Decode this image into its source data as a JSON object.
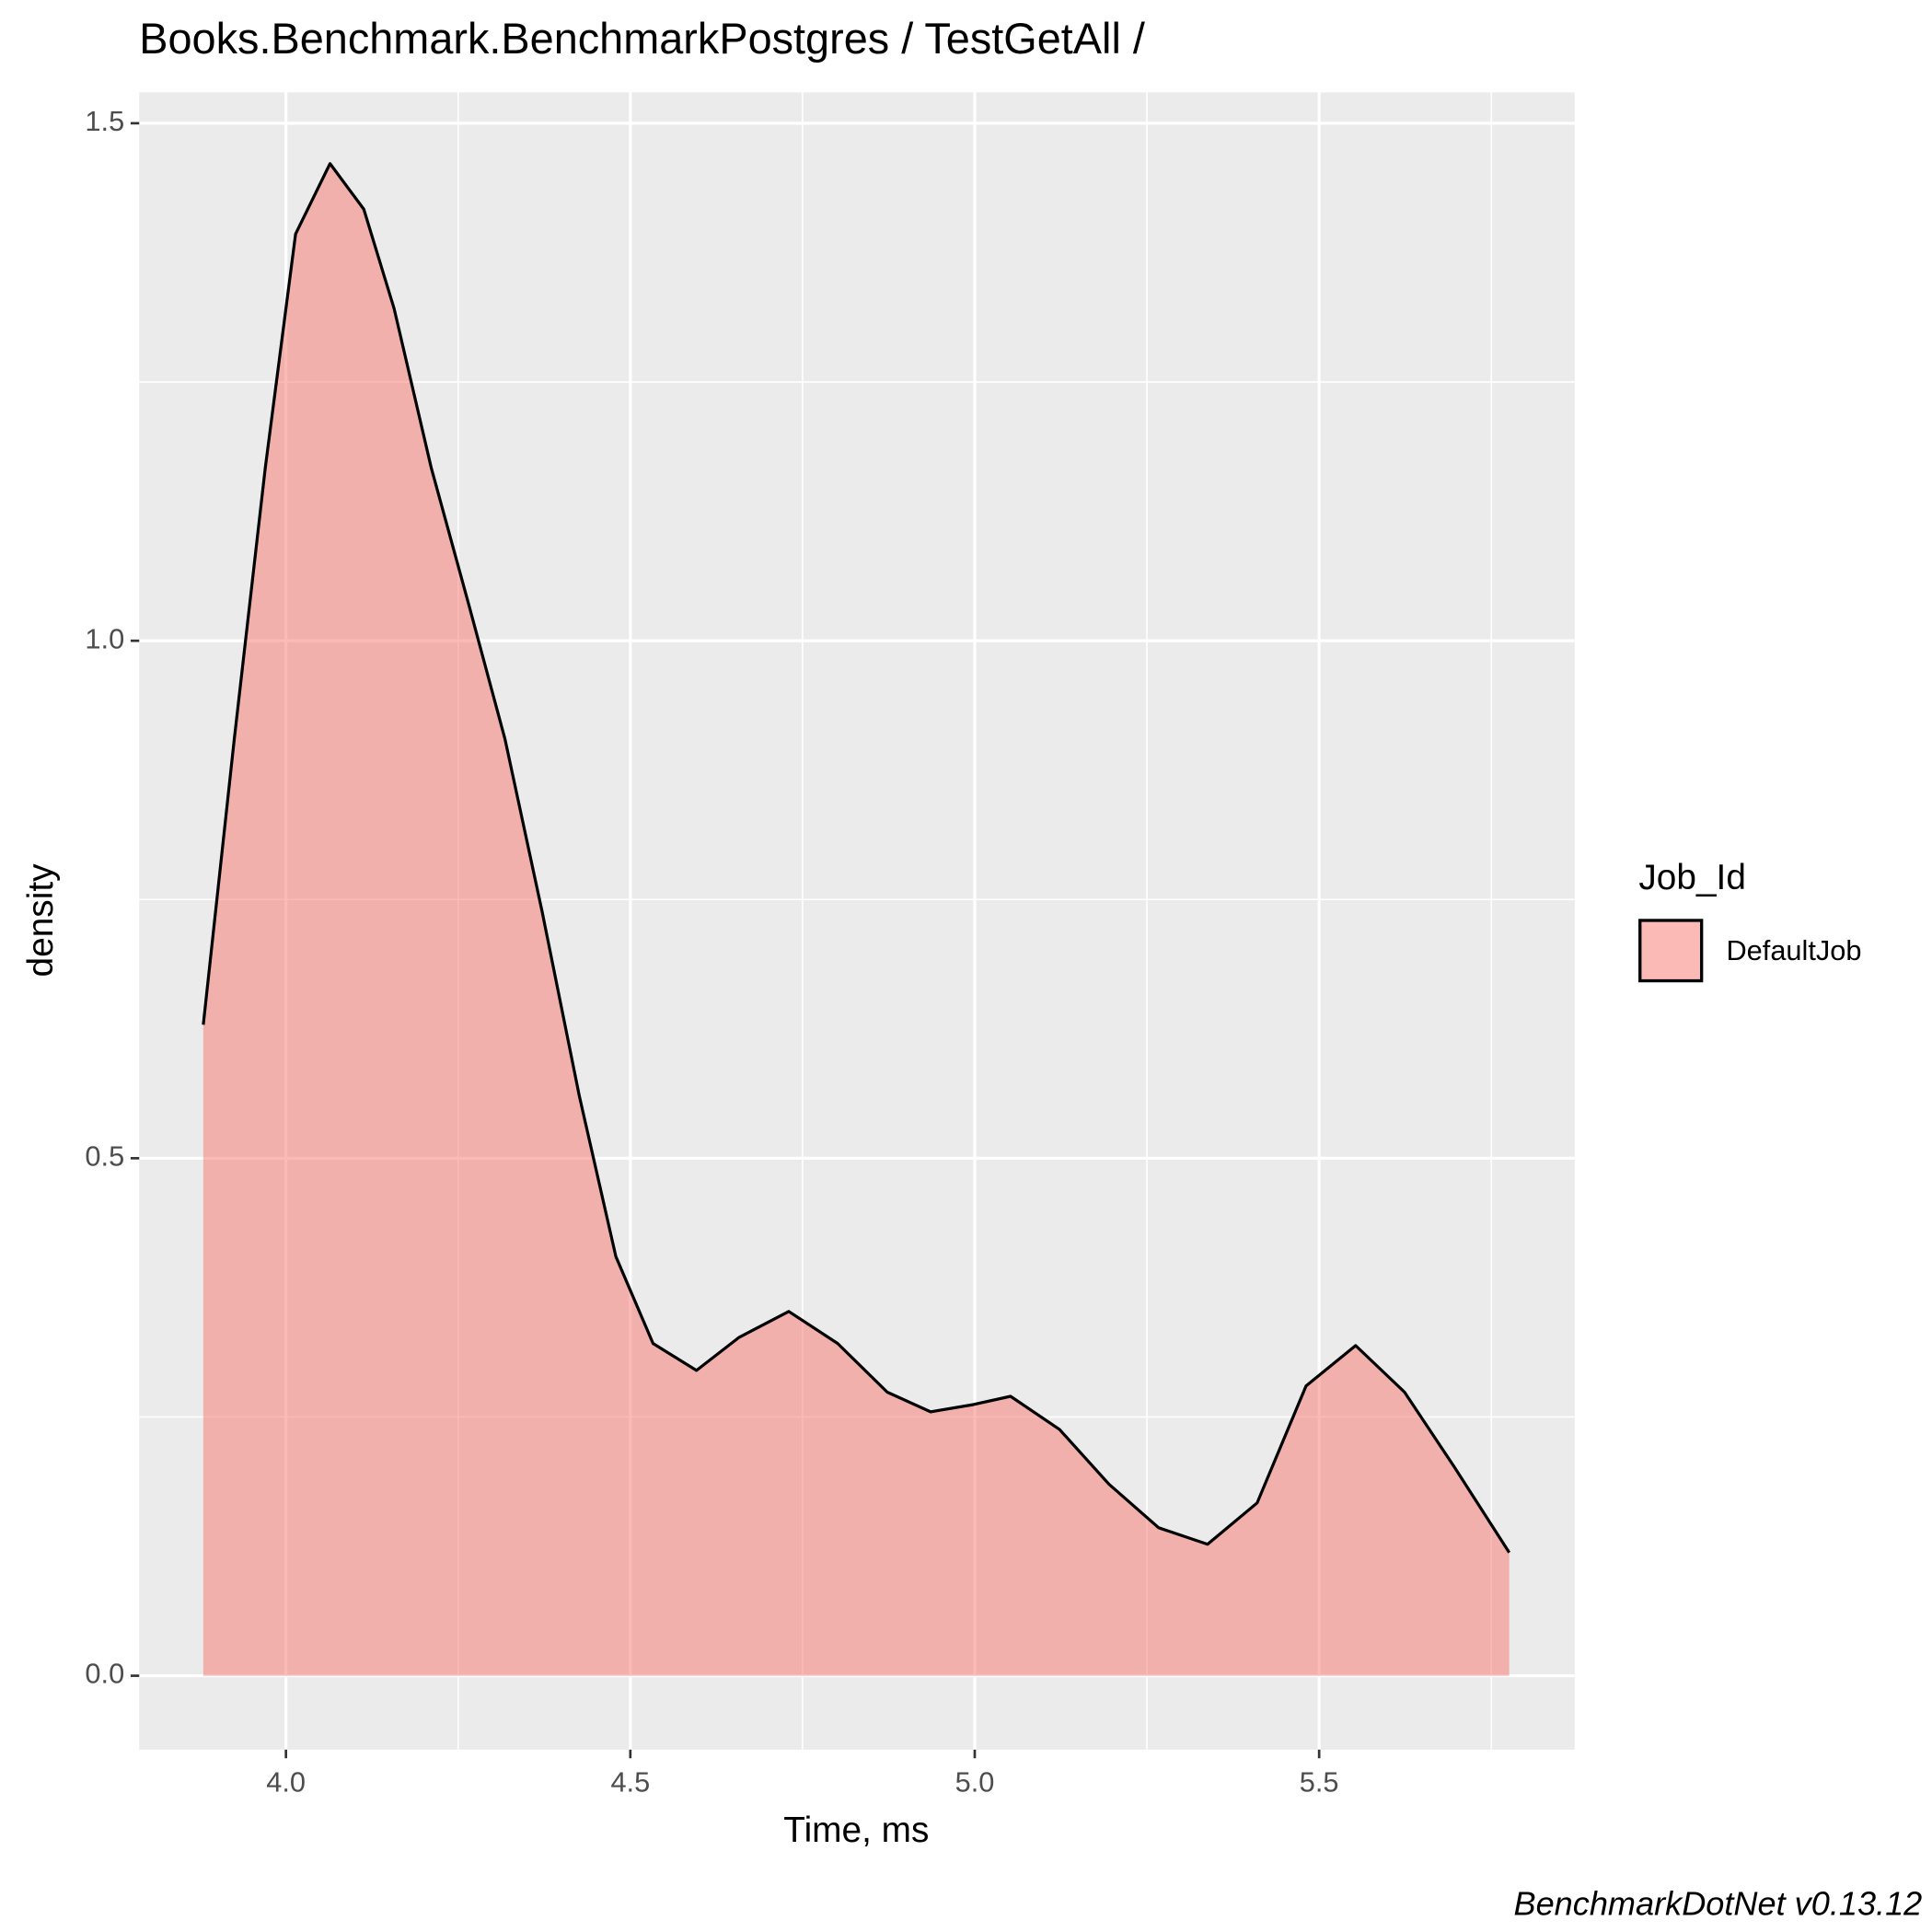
{
  "chart_data": {
    "type": "density",
    "title": "Books.Benchmark.BenchmarkPostgres / TestGetAll /",
    "x_label": "Time, ms",
    "y_label": "density",
    "caption": "BenchmarkDotNet v0.13.12",
    "legend_title": "Job_Id",
    "legend_position": "right",
    "grid": true,
    "x": [
      3.88,
      3.925,
      3.97,
      4.014,
      4.064,
      4.113,
      4.157,
      4.211,
      4.265,
      4.318,
      4.372,
      4.426,
      4.479,
      4.533,
      4.596,
      4.658,
      4.73,
      4.801,
      4.873,
      4.936,
      4.998,
      5.052,
      5.123,
      5.195,
      5.267,
      5.338,
      5.41,
      5.481,
      5.553,
      5.624,
      5.696,
      5.776
    ],
    "series": [
      {
        "name": "DefaultJob",
        "color": "#F8766D",
        "values": [
          0.629,
          0.905,
          1.167,
          1.393,
          1.461,
          1.417,
          1.321,
          1.167,
          1.036,
          0.905,
          0.738,
          0.56,
          0.405,
          0.321,
          0.295,
          0.327,
          0.352,
          0.321,
          0.274,
          0.255,
          0.262,
          0.27,
          0.238,
          0.185,
          0.143,
          0.127,
          0.167,
          0.28,
          0.319,
          0.274,
          0.202,
          0.119
        ]
      }
    ],
    "xlim": [
      3.787,
      5.871
    ],
    "ylim": [
      -0.0714,
      1.5298
    ],
    "xticks": [
      {
        "value": 4.0,
        "label": "4.0"
      },
      4.5,
      {
        "value": 5.0,
        "label": "5.0"
      },
      5.5
    ],
    "yticks": [
      {
        "value": 0,
        "label": "0.0"
      },
      0.5,
      {
        "value": 1.0,
        "label": "1.0"
      },
      1.5
    ]
  }
}
